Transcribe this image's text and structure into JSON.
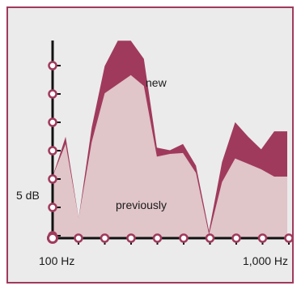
{
  "chart_data": {
    "type": "area",
    "title": "",
    "xlabel": "",
    "ylabel": "",
    "x_tick_labels": [
      "100 Hz",
      "1,000 Hz"
    ],
    "y_tick_label": "5 dB",
    "annotations": [
      "new",
      "previously"
    ],
    "x": [
      0,
      1,
      2,
      3,
      4,
      5,
      6,
      7,
      8,
      9,
      10,
      11,
      12,
      13,
      14,
      15,
      16,
      17,
      18
    ],
    "series": [
      {
        "name": "new",
        "values": [
          6.8,
          11.2,
          2.2,
          12.2,
          19.0,
          21.8,
          21.8,
          19.8,
          10.0,
          9.7,
          10.4,
          8.0,
          0.8,
          8.4,
          12.8,
          11.2,
          9.8,
          11.8,
          11.8
        ]
      },
      {
        "name": "previously",
        "values": [
          6.8,
          10.4,
          2.2,
          10.6,
          16.0,
          17.0,
          18.0,
          16.8,
          9.0,
          9.3,
          9.4,
          7.2,
          0.4,
          6.2,
          8.8,
          8.2,
          7.6,
          6.8,
          6.8
        ]
      }
    ],
    "x_markers": 10,
    "y_markers": 7,
    "colors": {
      "new": "#a03a5c",
      "previously": "#e0c5c9",
      "axis": "#111111",
      "marker": "#a03a5c"
    }
  }
}
